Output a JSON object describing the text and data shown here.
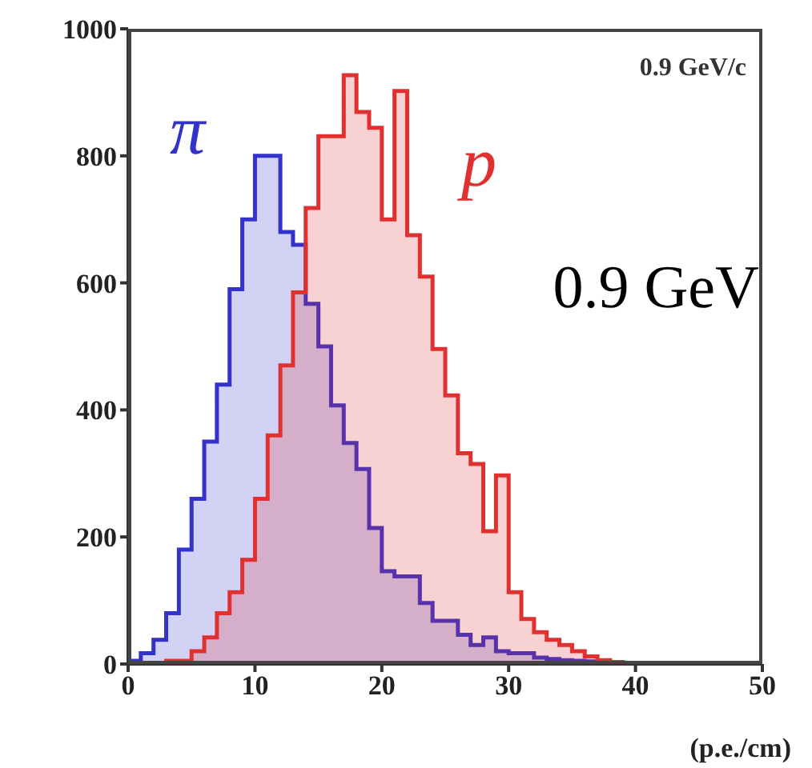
{
  "chart_data": {
    "type": "histogram",
    "xlabel": "(p.e./cm)",
    "annotations": [
      "0.9 GeV/c",
      "0.9 GeV"
    ],
    "bins": [
      0,
      1,
      2,
      3,
      4,
      5,
      6,
      7,
      8,
      9,
      10,
      11,
      12,
      13,
      14,
      15,
      16,
      17,
      18,
      19,
      20,
      21,
      22,
      23,
      24,
      25,
      26,
      27,
      28,
      29,
      30,
      31,
      32,
      33,
      34,
      35,
      36,
      37,
      38,
      39,
      40
    ],
    "series": [
      {
        "name": "π",
        "color": "#3333cc",
        "values": [
          5,
          17,
          38,
          80,
          180,
          260,
          350,
          440,
          590,
          700,
          800,
          800,
          680,
          660,
          567,
          500,
          407,
          348,
          307,
          214,
          146,
          138,
          138,
          96,
          68,
          68,
          46,
          30,
          42,
          20,
          17,
          17,
          10,
          8,
          6,
          5,
          4,
          3,
          2,
          1
        ]
      },
      {
        "name": "p",
        "color": "#e03030",
        "values": [
          0,
          0,
          2,
          5,
          5,
          20,
          42,
          80,
          113,
          164,
          260,
          360,
          470,
          585,
          718,
          831,
          831,
          927,
          869,
          844,
          700,
          902,
          675,
          610,
          496,
          423,
          332,
          315,
          209,
          297,
          113,
          71,
          50,
          38,
          30,
          20,
          12,
          6,
          3,
          1
        ]
      }
    ],
    "xlim": [
      0,
      50
    ],
    "xticks": [
      0,
      10,
      20,
      30,
      40,
      50
    ],
    "ylim": [
      0,
      1000
    ],
    "yticks": [
      0,
      200,
      400,
      600,
      800,
      1000
    ]
  }
}
